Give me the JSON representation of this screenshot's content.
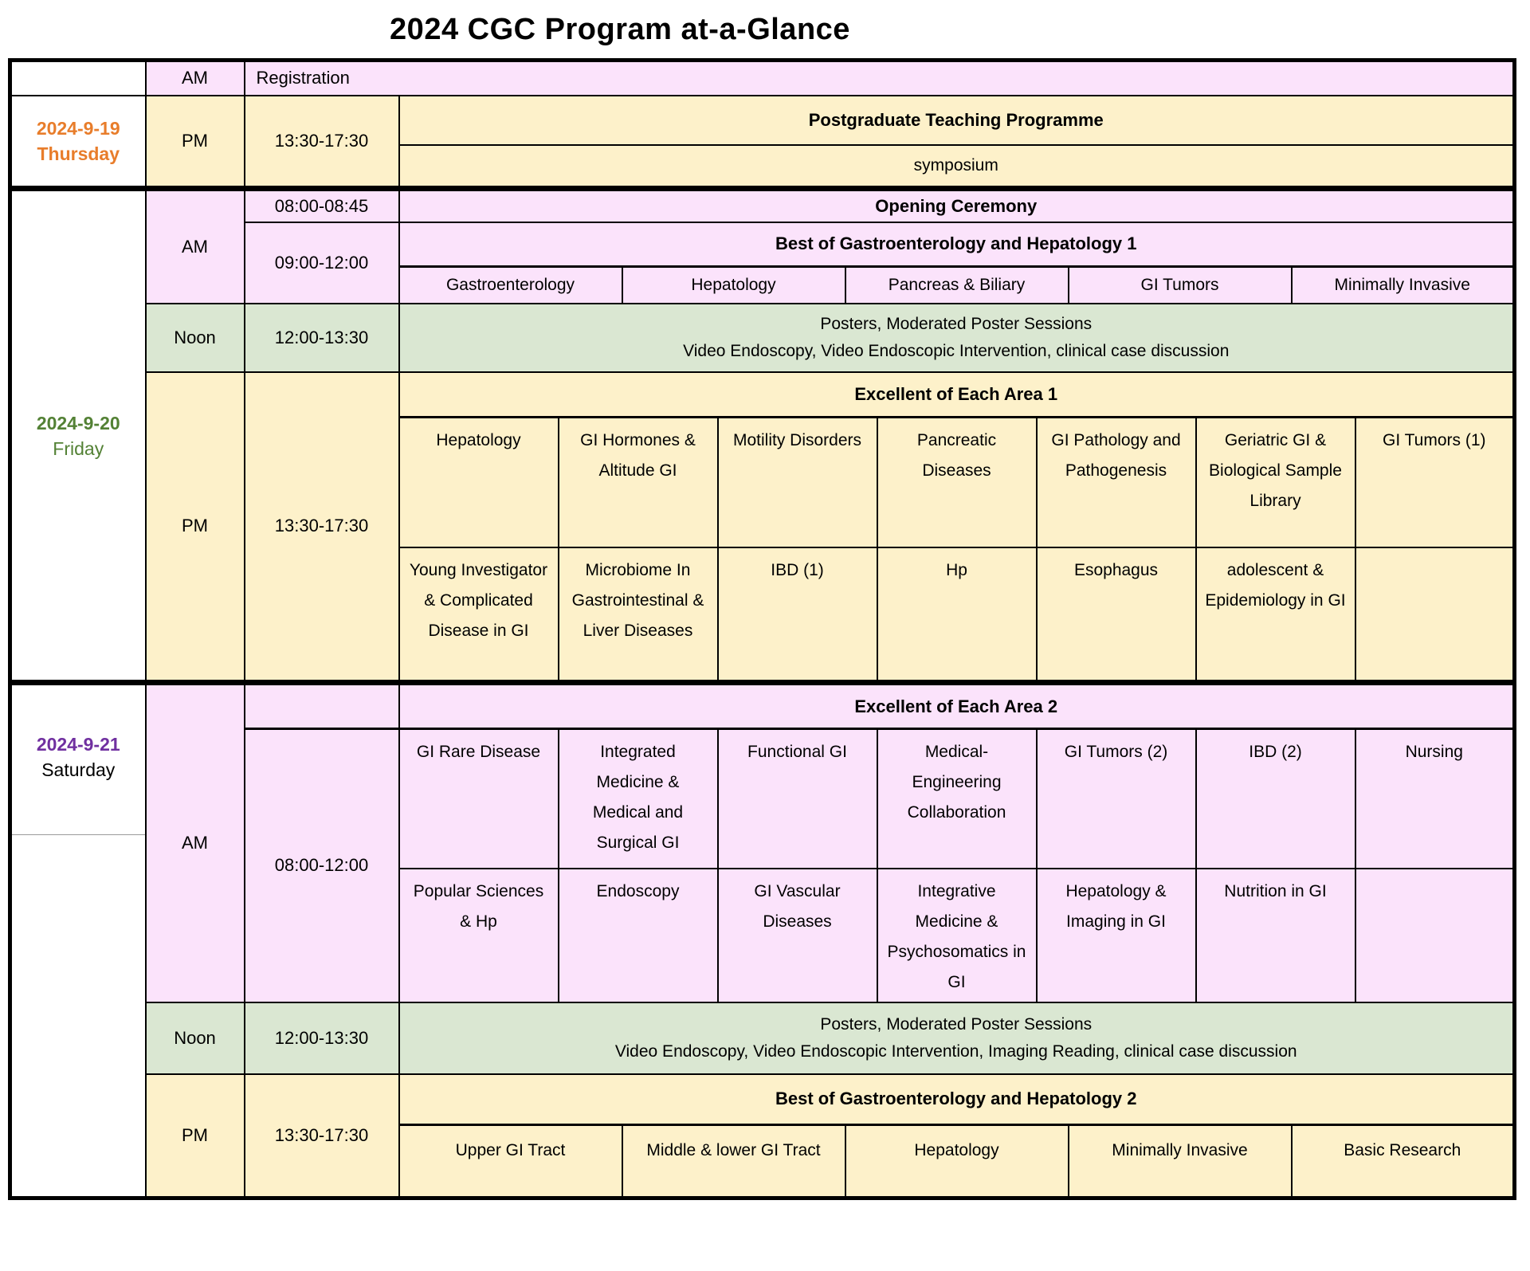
{
  "title": "2024 CGC Program at-a-Glance",
  "labels": {
    "am": "AM",
    "pm": "PM",
    "noon": "Noon"
  },
  "colors": {
    "am_row": "#FBE3FB",
    "pm_row": "#FDF1CA",
    "noon_row": "#DAE7D2",
    "thursday_date": "#E87D2B",
    "friday_date": "#538135",
    "saturday_date": "#7030A0",
    "border": "#000000"
  },
  "thursday": {
    "date": "2024-9-19",
    "weekday": "Thursday",
    "am": {
      "session": "Registration"
    },
    "pm": {
      "time": "13:30-17:30",
      "title": "Postgraduate Teaching Programme",
      "subtitle": "symposium"
    }
  },
  "friday": {
    "date": "2024-9-20",
    "weekday": "Friday",
    "am": {
      "opening_time": "08:00-08:45",
      "opening_title": "Opening Ceremony",
      "session_time": "09:00-12:00",
      "session_title": "Best of Gastroenterology and Hepatology 1",
      "tracks": [
        "Gastroenterology",
        "Hepatology",
        "Pancreas & Biliary",
        "GI Tumors",
        "Minimally Invasive"
      ]
    },
    "noon": {
      "time": "12:00-13:30",
      "line1": "Posters, Moderated Poster Sessions",
      "line2": "Video Endoscopy, Video Endoscopic Intervention, clinical case discussion"
    },
    "pm": {
      "time": "13:30-17:30",
      "session_title": "Excellent of Each Area 1",
      "tracks_row1": [
        "Hepatology",
        "GI Hormones & Altitude GI",
        "Motility Disorders",
        "Pancreatic Diseases",
        "GI Pathology and Pathogenesis",
        "Geriatric GI & Biological Sample Library",
        "GI Tumors (1)"
      ],
      "tracks_row2": [
        "Young Investigator & Complicated Disease in GI",
        "Microbiome In Gastrointestinal & Liver Diseases",
        "IBD (1)",
        "Hp",
        "Esophagus",
        "adolescent & Epidemiology in GI",
        ""
      ]
    }
  },
  "saturday": {
    "date": "2024-9-21",
    "weekday": "Saturday",
    "am": {
      "time": "08:00-12:00",
      "session_title": "Excellent of Each Area 2",
      "tracks_row1": [
        "GI Rare Disease",
        "Integrated Medicine & Medical and Surgical GI",
        "Functional GI",
        "Medical-Engineering Collaboration",
        "GI Tumors (2)",
        "IBD (2)",
        "Nursing"
      ],
      "tracks_row2": [
        "Popular Sciences & Hp",
        "Endoscopy",
        "GI Vascular Diseases",
        "Integrative Medicine & Psychosomatics in GI",
        "Hepatology & Imaging in GI",
        "Nutrition in GI",
        ""
      ]
    },
    "noon": {
      "time": "12:00-13:30",
      "line1": "Posters, Moderated Poster Sessions",
      "line2": "Video Endoscopy, Video Endoscopic Intervention, Imaging Reading, clinical case discussion"
    },
    "pm": {
      "time": "13:30-17:30",
      "session_title": "Best of Gastroenterology and Hepatology 2",
      "tracks": [
        "Upper GI Tract",
        "Middle & lower GI Tract",
        "Hepatology",
        "Minimally Invasive",
        "Basic Research"
      ]
    }
  }
}
